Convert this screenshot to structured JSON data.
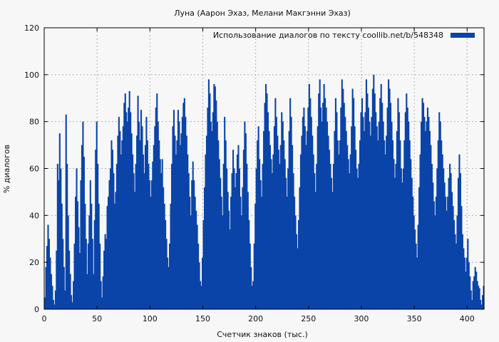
{
  "chart_data": {
    "type": "bar",
    "title": "Луна (Аарон Эхаз, Мелани Макгэнни Эхаз)",
    "xlabel": "Счетчик знаков (тыс.)",
    "ylabel": "% диалогов",
    "xlim": [
      0,
      416
    ],
    "ylim": [
      0,
      120
    ],
    "xticks": [
      0,
      50,
      100,
      150,
      200,
      250,
      300,
      350,
      400
    ],
    "yticks": [
      0,
      20,
      40,
      60,
      80,
      100,
      120
    ],
    "grid": true,
    "legend": {
      "position": "top-right"
    },
    "series": [
      {
        "name": "Использование диалогов по тексту  coollib.net/b/548348",
        "color": "#0a44a8",
        "x_step": 1,
        "values": [
          5,
          18,
          27,
          36,
          30,
          22,
          15,
          10,
          4,
          2,
          8,
          25,
          62,
          55,
          75,
          60,
          45,
          30,
          18,
          8,
          83,
          62,
          40,
          25,
          15,
          6,
          3,
          12,
          28,
          48,
          60,
          46,
          35,
          24,
          55,
          70,
          80,
          65,
          45,
          30,
          15,
          28,
          40,
          55,
          45,
          30,
          15,
          38,
          68,
          80,
          62,
          45,
          28,
          12,
          5,
          14,
          25,
          32,
          30,
          44,
          48,
          55,
          60,
          72,
          68,
          58,
          45,
          50,
          62,
          74,
          82,
          76,
          66,
          72,
          78,
          88,
          92,
          84,
          80,
          86,
          93,
          84,
          75,
          66,
          58,
          50,
          62,
          74,
          91,
          80,
          72,
          85,
          78,
          66,
          58,
          70,
          82,
          72,
          62,
          55,
          48,
          55,
          63,
          70,
          78,
          86,
          92,
          80,
          72,
          64,
          58,
          64,
          52,
          45,
          38,
          30,
          22,
          18,
          28,
          45,
          62,
          78,
          85,
          74,
          66,
          72,
          85,
          80,
          70,
          75,
          82,
          88,
          90,
          82,
          74,
          66,
          58,
          48,
          40,
          55,
          63,
          55,
          48,
          42,
          36,
          28,
          20,
          12,
          10,
          22,
          38,
          52,
          66,
          74,
          86,
          98,
          92,
          80,
          76,
          84,
          96,
          95,
          89,
          80,
          72,
          64,
          56,
          48,
          40,
          62,
          82,
          72,
          60,
          50,
          42,
          34,
          48,
          58,
          68,
          60,
          52,
          58,
          66,
          70,
          60,
          48,
          40,
          52,
          68,
          80,
          75,
          62,
          50,
          38,
          28,
          18,
          10,
          12,
          28,
          45,
          60,
          72,
          78,
          64,
          55,
          48,
          62,
          76,
          88,
          96,
          92,
          84,
          76,
          70,
          64,
          58,
          66,
          78,
          90,
          82,
          74,
          68,
          62,
          70,
          84,
          80,
          72,
          64,
          56,
          48,
          60,
          76,
          90,
          82,
          70,
          58,
          48,
          40,
          32,
          26,
          38,
          52,
          66,
          74,
          82,
          86,
          78,
          70,
          76,
          86,
          96,
          90,
          82,
          74,
          66,
          58,
          50,
          62,
          78,
          92,
          98,
          86,
          80,
          88,
          96,
          90,
          86,
          80,
          74,
          68,
          62,
          56,
          50,
          62,
          76,
          90,
          84,
          72,
          66,
          72,
          86,
          98,
          94,
          88,
          82,
          76,
          70,
          64,
          58,
          66,
          78,
          94,
          90,
          78,
          68,
          60,
          56,
          62,
          72,
          84,
          90,
          82,
          76,
          84,
          98,
          92,
          86,
          80,
          74,
          82,
          94,
          100,
          92,
          84,
          78,
          72,
          80,
          90,
          96,
          88,
          80,
          72,
          66,
          74,
          86,
          98,
          94,
          88,
          80,
          72,
          64,
          56,
          62,
          76,
          90,
          84,
          72,
          60,
          54,
          60,
          72,
          84,
          92,
          86,
          80,
          72,
          64,
          56,
          48,
          40,
          34,
          28,
          22,
          36,
          52,
          66,
          80,
          90,
          88,
          82,
          76,
          80,
          86,
          82,
          76,
          70,
          62,
          54,
          46,
          40,
          48,
          60,
          72,
          84,
          80,
          72,
          66,
          60,
          54,
          48,
          42,
          48,
          56,
          62,
          58,
          50,
          44,
          38,
          32,
          28,
          40,
          56,
          66,
          58,
          44,
          32,
          26,
          22,
          16,
          22,
          30,
          20,
          14,
          8,
          4,
          12,
          14,
          18,
          16,
          12,
          10,
          9,
          4,
          2,
          6,
          10
        ]
      }
    ]
  }
}
